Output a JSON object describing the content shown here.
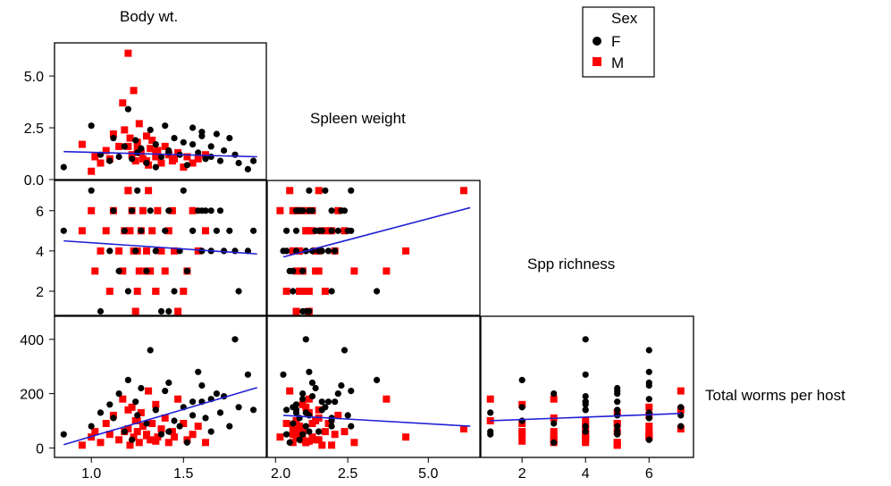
{
  "chart_data": {
    "type": "scatter",
    "subtype": "scatterplot-matrix (lower triangle)",
    "variables": [
      "Body wt.",
      "Spleen weight",
      "Spp richness",
      "Total worms per host"
    ],
    "legend": {
      "title": "Sex",
      "position": "top-right",
      "entries": [
        {
          "name": "F",
          "color": "#000000",
          "marker": "circle"
        },
        {
          "name": "M",
          "color": "#ff0000",
          "marker": "square"
        }
      ]
    },
    "fit_line_color": "#1f1fd6",
    "x_ticks": {
      "body_wt": [
        "1.0",
        "1.5",
        "2.0"
      ],
      "spleen_weight": [
        "2.5",
        "5.0"
      ],
      "spp_richness": [
        "2",
        "4",
        "6"
      ]
    },
    "y_ticks": {
      "spleen_weight": [
        "0.0",
        "2.5",
        "5.0"
      ],
      "spp_richness": [
        "2",
        "4",
        "6"
      ],
      "total_worms": [
        "0",
        "200",
        "400"
      ]
    },
    "panels": [
      {
        "x": "Body wt.",
        "y": "Spleen weight",
        "xlim": [
          0.8,
          1.95
        ],
        "ylim": [
          0.0,
          6.6
        ],
        "fit": {
          "x": [
            0.85,
            1.9
          ],
          "y": [
            1.35,
            1.1
          ]
        }
      },
      {
        "x": "Body wt.",
        "y": "Spp richness",
        "xlim": [
          0.8,
          1.95
        ],
        "ylim": [
          0.8,
          7.5
        ],
        "fit": {
          "x": [
            0.85,
            1.9
          ],
          "y": [
            4.5,
            3.85
          ]
        }
      },
      {
        "x": "Body wt.",
        "y": "Total worms per host",
        "xlim": [
          0.8,
          1.95
        ],
        "ylim": [
          -35,
          485
        ],
        "fit": {
          "x": [
            0.85,
            1.9
          ],
          "y": [
            12,
            222
          ]
        }
      },
      {
        "x": "Spleen weight",
        "y": "Spp richness",
        "xlim": [
          0.0,
          6.6
        ],
        "ylim": [
          0.8,
          7.5
        ],
        "fit": {
          "x": [
            0.5,
            6.3
          ],
          "y": [
            3.7,
            6.15
          ]
        }
      },
      {
        "x": "Spleen weight",
        "y": "Total worms per host",
        "xlim": [
          0.0,
          6.6
        ],
        "ylim": [
          -35,
          485
        ],
        "fit": {
          "x": [
            0.5,
            6.3
          ],
          "y": [
            120,
            80
          ]
        }
      },
      {
        "x": "Spp richness",
        "y": "Total worms per host",
        "xlim": [
          0.7,
          7.4
        ],
        "ylim": [
          -35,
          485
        ],
        "fit": {
          "x": [
            1.0,
            7.0
          ],
          "y": [
            100,
            127
          ]
        }
      }
    ],
    "points": {
      "F": {
        "body_wt": [
          0.85,
          1.0,
          1.05,
          1.1,
          1.12,
          1.15,
          1.18,
          1.2,
          1.22,
          1.24,
          1.25,
          1.27,
          1.3,
          1.32,
          1.35,
          1.38,
          1.4,
          1.42,
          1.45,
          1.48,
          1.5,
          1.52,
          1.55,
          1.58,
          1.6,
          1.62,
          1.65,
          1.68,
          1.7,
          1.72,
          1.75,
          1.78,
          1.8,
          1.85,
          1.88,
          1.55,
          1.6,
          1.65,
          1.42,
          1.35
        ],
        "spleen": [
          0.6,
          2.6,
          1.2,
          0.9,
          2.0,
          1.1,
          1.6,
          3.4,
          1.0,
          1.9,
          1.3,
          1.5,
          0.8,
          2.4,
          1.7,
          1.1,
          2.6,
          1.4,
          2.0,
          1.2,
          1.8,
          0.7,
          2.5,
          1.3,
          2.1,
          1.0,
          1.6,
          2.2,
          0.9,
          1.4,
          2.0,
          1.2,
          0.8,
          0.5,
          0.9,
          1.7,
          2.3,
          1.1,
          1.3,
          0.6
        ],
        "spp": [
          5,
          7,
          1,
          4,
          6,
          3,
          5,
          2,
          6,
          4,
          7,
          5,
          3,
          6,
          4,
          1,
          5,
          6,
          2,
          4,
          7,
          3,
          5,
          6,
          4,
          6,
          4,
          5,
          6,
          4,
          5,
          4,
          2,
          4,
          5,
          5,
          6,
          6,
          1,
          4
        ],
        "worms": [
          50,
          80,
          130,
          160,
          110,
          200,
          60,
          250,
          30,
          170,
          120,
          220,
          90,
          360,
          140,
          50,
          210,
          240,
          100,
          80,
          150,
          20,
          120,
          280,
          170,
          110,
          60,
          200,
          130,
          190,
          80,
          400,
          150,
          270,
          140,
          170,
          230,
          180,
          60,
          140
        ]
      },
      "M": {
        "body_wt": [
          0.95,
          1.0,
          1.02,
          1.05,
          1.08,
          1.1,
          1.12,
          1.15,
          1.17,
          1.2,
          1.21,
          1.22,
          1.23,
          1.24,
          1.25,
          1.26,
          1.27,
          1.28,
          1.3,
          1.31,
          1.32,
          1.33,
          1.35,
          1.36,
          1.38,
          1.4,
          1.42,
          1.44,
          1.45,
          1.47,
          1.5,
          1.52,
          1.55,
          1.58,
          1.62,
          1.2,
          1.18,
          1.25,
          1.3,
          1.35
        ],
        "spleen": [
          1.7,
          0.4,
          1.1,
          0.8,
          1.4,
          1.0,
          2.2,
          1.6,
          3.7,
          6.1,
          2.0,
          1.2,
          4.3,
          0.9,
          1.8,
          2.7,
          1.3,
          1.0,
          2.1,
          0.7,
          1.5,
          1.9,
          1.1,
          1.4,
          0.8,
          1.6,
          1.2,
          0.9,
          1.0,
          1.3,
          0.6,
          1.1,
          0.8,
          1.0,
          1.2,
          1.6,
          2.4,
          1.5,
          0.9,
          1.3
        ],
        "spp": [
          5,
          6,
          3,
          4,
          5,
          2,
          6,
          4,
          3,
          7,
          5,
          6,
          4,
          1,
          2,
          3,
          5,
          6,
          4,
          7,
          3,
          5,
          2,
          6,
          4,
          3,
          5,
          6,
          4,
          1,
          2,
          3,
          6,
          4,
          5,
          7,
          5,
          4,
          3,
          2
        ],
        "worms": [
          10,
          40,
          60,
          20,
          90,
          50,
          120,
          30,
          180,
          70,
          10,
          150,
          40,
          100,
          60,
          20,
          130,
          80,
          50,
          210,
          30,
          90,
          160,
          40,
          70,
          110,
          20,
          60,
          40,
          180,
          90,
          30,
          50,
          80,
          20,
          140,
          60,
          100,
          45,
          25
        ]
      }
    }
  }
}
